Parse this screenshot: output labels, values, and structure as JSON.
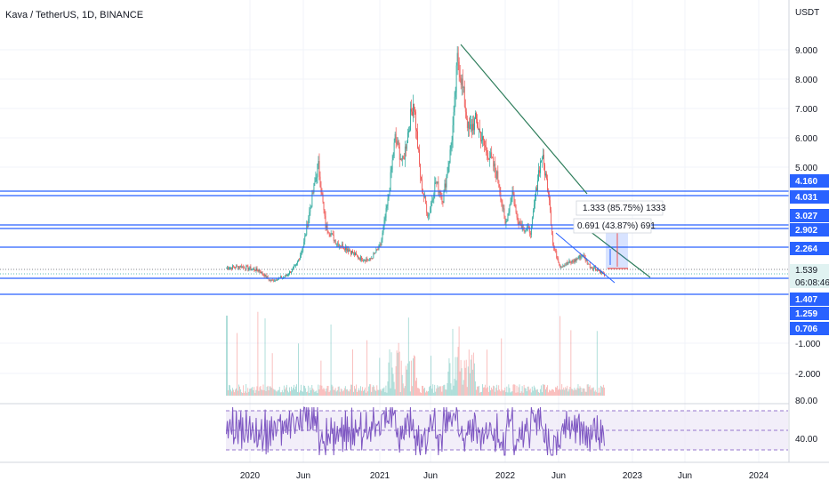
{
  "header": {
    "title": "Kava / TetherUS, 1D, BINANCE"
  },
  "colors": {
    "up": "#26a69a",
    "down": "#ef5350",
    "level_line": "#2962ff",
    "trend_line": "#2e7d5b",
    "rsi_line": "#7e57c2",
    "rsi_band": "#ede7f6",
    "grid": "#f0f3fa"
  },
  "chart_data": {
    "type": "candlestick",
    "title": "Kava / TetherUS, 1D, BINANCE",
    "price_axis": {
      "unit": "USDT",
      "ticks": [
        "9.000",
        "8.000",
        "7.000",
        "6.000",
        "5.000",
        "-1.000",
        "-2.000"
      ]
    },
    "time_axis": {
      "ticks": [
        "2020",
        "Jun",
        "2021",
        "Jun",
        "2022",
        "Jun",
        "2023",
        "Jun",
        "2024"
      ]
    },
    "price_path": [
      [
        0,
        1.55
      ],
      [
        4,
        1.6
      ],
      [
        9,
        1.45
      ],
      [
        12,
        1.1
      ],
      [
        16,
        1.25
      ],
      [
        19,
        1.6
      ],
      [
        21,
        2.3
      ],
      [
        23,
        3.7
      ],
      [
        25,
        5.1
      ],
      [
        27,
        3.0
      ],
      [
        30,
        2.4
      ],
      [
        33,
        2.2
      ],
      [
        36,
        1.9
      ],
      [
        39,
        1.8
      ],
      [
        42,
        2.3
      ],
      [
        44,
        3.8
      ],
      [
        46,
        6.0
      ],
      [
        48,
        5.1
      ],
      [
        50,
        6.6
      ],
      [
        51,
        7.3
      ],
      [
        53,
        4.5
      ],
      [
        55,
        3.3
      ],
      [
        57,
        4.5
      ],
      [
        59,
        3.9
      ],
      [
        61,
        5.5
      ],
      [
        62,
        6.7
      ],
      [
        63,
        8.8
      ],
      [
        64,
        8.0
      ],
      [
        66,
        6.2
      ],
      [
        68,
        6.6
      ],
      [
        70,
        5.8
      ],
      [
        72,
        5.3
      ],
      [
        74,
        4.6
      ],
      [
        76,
        3.0
      ],
      [
        78,
        4.2
      ],
      [
        79,
        3.3
      ],
      [
        81,
        2.9
      ],
      [
        83,
        2.8
      ],
      [
        85,
        4.8
      ],
      [
        86,
        5.4
      ],
      [
        88,
        4.0
      ],
      [
        89,
        2.3
      ],
      [
        91,
        1.6
      ],
      [
        93,
        1.7
      ],
      [
        95,
        1.8
      ],
      [
        97,
        2.0
      ],
      [
        99,
        1.6
      ],
      [
        101,
        1.5
      ],
      [
        103,
        1.3
      ]
    ],
    "levels": [
      {
        "value": 4.16,
        "label": "4.160"
      },
      {
        "value": 4.031,
        "label": "4.031"
      },
      {
        "value": 3.027,
        "label": "3.027"
      },
      {
        "value": 2.902,
        "label": "2.902"
      },
      {
        "value": 2.264,
        "label": "2.264"
      },
      {
        "value": 1.407,
        "label": "1.407"
      },
      {
        "value": 1.259,
        "label": "1.259"
      },
      {
        "value": 0.706,
        "label": "0.706"
      }
    ],
    "current_price": {
      "label": "1.539",
      "countdown": "06:08:46"
    },
    "annotations": [
      {
        "text": "1.333 (85.75%) 1333"
      },
      {
        "text": "0.691 (43.87%) 691"
      }
    ],
    "rsi": {
      "ticks": [
        "80.00",
        "40.00"
      ],
      "upper": 70,
      "lower": 30
    }
  }
}
